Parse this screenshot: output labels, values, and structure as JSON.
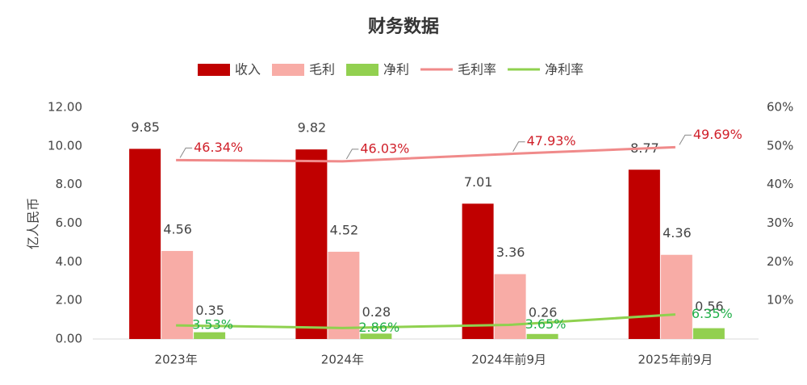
{
  "chart_data": {
    "type": "bar",
    "title": "财务数据",
    "y_label": "亿人民币",
    "categories": [
      "2023年",
      "2024年",
      "2024年前9月",
      "2025年前9月"
    ],
    "series": [
      {
        "name": "收入",
        "type": "bar",
        "color": "#c00000",
        "values": [
          9.85,
          9.82,
          7.01,
          8.77
        ]
      },
      {
        "name": "毛利",
        "type": "bar",
        "color": "#f8aca6",
        "values": [
          4.56,
          4.52,
          3.36,
          4.36
        ]
      },
      {
        "name": "净利",
        "type": "bar",
        "color": "#92d050",
        "values": [
          0.35,
          0.28,
          0.26,
          0.56
        ]
      },
      {
        "name": "毛利率",
        "type": "line",
        "axis": "y2",
        "color": "#f08a8a",
        "values": [
          46.34,
          46.03,
          47.93,
          49.69
        ],
        "value_labels": [
          "46.34%",
          "46.03%",
          "47.93%",
          "49.69%"
        ],
        "label_color": "#d0202a"
      },
      {
        "name": "净利率",
        "type": "line",
        "axis": "y2",
        "color": "#8fd14f",
        "values": [
          3.53,
          2.86,
          3.65,
          6.35
        ],
        "value_labels": [
          "3.53%",
          "2.86%",
          "3.65%",
          "6.35%"
        ],
        "label_color": "#22b04a"
      }
    ],
    "ylim": [
      0,
      12
    ],
    "yticks": [
      {
        "value": 0,
        "label": "0.00"
      },
      {
        "value": 2,
        "label": "2.00"
      },
      {
        "value": 4,
        "label": "4.00"
      },
      {
        "value": 6,
        "label": "6.00"
      },
      {
        "value": 8,
        "label": "8.00"
      },
      {
        "value": 10,
        "label": "10.00"
      },
      {
        "value": 12,
        "label": "12.00"
      }
    ],
    "y2lim": [
      0,
      60
    ],
    "y2ticks": [
      {
        "value": 10,
        "label": "10%"
      },
      {
        "value": 20,
        "label": "20%"
      },
      {
        "value": 30,
        "label": "30%"
      },
      {
        "value": 40,
        "label": "40%"
      },
      {
        "value": 50,
        "label": "50%"
      },
      {
        "value": 60,
        "label": "60%"
      }
    ],
    "grid": false,
    "legend": "top"
  }
}
